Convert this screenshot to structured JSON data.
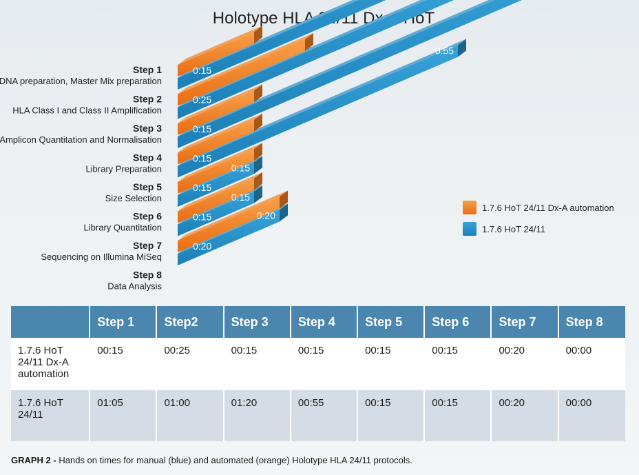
{
  "chart_data": {
    "type": "bar",
    "title": "Holotype HLA 24/11 Dx-A HoT",
    "orientation": "horizontal",
    "categories": [
      {
        "step": "Step 1",
        "name": "gDNA preparation, Master Mix preparation"
      },
      {
        "step": "Step 2",
        "name": "HLA Class I and Class II Amplification"
      },
      {
        "step": "Step 3",
        "name": "Amplicon Quantitation and Normalisation"
      },
      {
        "step": "Step 4",
        "name": "Library Preparation"
      },
      {
        "step": "Step 5",
        "name": "Size Selection"
      },
      {
        "step": "Step 6",
        "name": "Library Quantitation"
      },
      {
        "step": "Step 7",
        "name": "Sequencing on Illumina MiSeq"
      },
      {
        "step": "Step 8",
        "name": "Data Analysis"
      }
    ],
    "series": [
      {
        "name": "1.7.6 HoT 24/11 Dx-A automation",
        "color": "#f07f22",
        "values": [
          15,
          25,
          15,
          15,
          15,
          15,
          20,
          0
        ],
        "labels": [
          "0:15",
          "0:25",
          "0:15",
          "0:15",
          "0:15",
          "0:15",
          "0:20",
          ""
        ]
      },
      {
        "name": "1.7.6 HoT 24/11",
        "color": "#2a8fc7",
        "values": [
          65,
          60,
          80,
          55,
          15,
          15,
          20,
          0
        ],
        "labels": [
          "1:05",
          "1:00",
          "1:20",
          "0:55",
          "0:15",
          "0:15",
          "0:20",
          ""
        ]
      }
    ],
    "xlim": [
      0,
      80
    ],
    "legend_position": "right",
    "grid": false
  },
  "table": {
    "headers": [
      "",
      "Step 1",
      "Step2",
      "Step 3",
      "Step 4",
      "Step 5",
      "Step 6",
      "Step 7",
      "Step 8"
    ],
    "rows": [
      {
        "label": "1.7.6 HoT 24/11 Dx-A automation",
        "values": [
          "00:15",
          "00:25",
          "00:15",
          "00:15",
          "00:15",
          "00:15",
          "00:20",
          "00:00"
        ]
      },
      {
        "label": "1.7.6 HoT 24/11",
        "values": [
          "01:05",
          "01:00",
          "01:20",
          "00:55",
          "00:15",
          "00:15",
          "00:20",
          "00:00"
        ]
      }
    ]
  },
  "caption": {
    "prefix": "GRAPH 2 -",
    "text": "Hands on times for manual (blue) and automated (orange) Holotype HLA 24/11 protocols."
  }
}
